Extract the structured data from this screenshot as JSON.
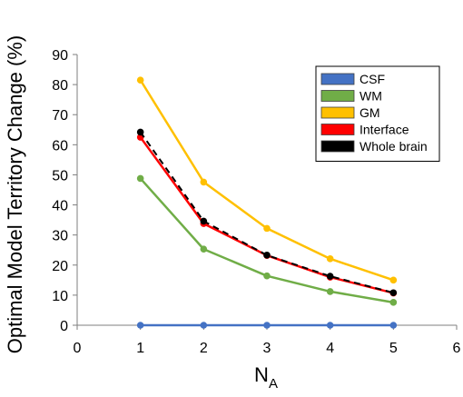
{
  "chart_data": {
    "type": "line",
    "title": "",
    "xlabel": "N",
    "xlabel_subscript": "A",
    "ylabel": "Optimal Model Territory Change (%)",
    "xlim": [
      0,
      6
    ],
    "ylim": [
      0,
      90
    ],
    "xticks": [
      0,
      1,
      2,
      3,
      4,
      5,
      6
    ],
    "yticks": [
      0,
      10,
      20,
      30,
      40,
      50,
      60,
      70,
      80,
      90
    ],
    "grid": false,
    "legend_position": "top-right",
    "x": [
      1,
      2,
      3,
      4,
      5
    ],
    "series": [
      {
        "name": "CSF",
        "color": "#4472C4",
        "marker_color": "#4472C4",
        "line_style": "solid",
        "values": [
          0,
          0,
          0,
          0,
          0
        ]
      },
      {
        "name": "WM",
        "color": "#70AD47",
        "marker_color": "#70AD47",
        "line_style": "solid",
        "values": [
          48.8,
          25.3,
          16.4,
          11.2,
          7.6
        ]
      },
      {
        "name": "GM",
        "color": "#FFC000",
        "marker_color": "#FFC000",
        "line_style": "solid",
        "values": [
          81.5,
          47.6,
          32.2,
          22.1,
          15.0
        ]
      },
      {
        "name": "Interface",
        "color": "#FF0000",
        "marker_color": "#FF0000",
        "line_style": "solid",
        "values": [
          62.5,
          33.8,
          23.2,
          16.0,
          10.7
        ]
      },
      {
        "name": "Whole brain",
        "color": "#000000",
        "marker_color": "#000000",
        "line_style": "dashed",
        "values": [
          64.2,
          34.6,
          23.3,
          16.3,
          10.8
        ]
      }
    ]
  }
}
